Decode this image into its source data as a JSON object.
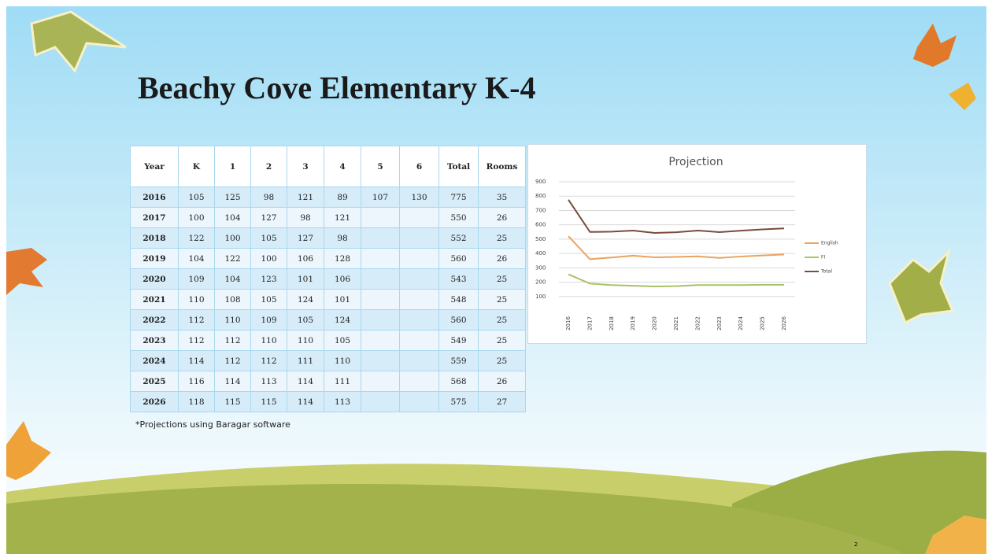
{
  "title": "Beachy Cove Elementary K-4",
  "table": {
    "header": [
      "Year",
      "K",
      "1",
      "2",
      "3",
      "4",
      "5",
      "6",
      "Total",
      "Rooms"
    ],
    "rows": [
      [
        "2016",
        "105",
        "125",
        "98",
        "121",
        "89",
        "107",
        "130",
        "775",
        "35"
      ],
      [
        "2017",
        "100",
        "104",
        "127",
        "98",
        "121",
        null,
        null,
        "550",
        "26"
      ],
      [
        "2018",
        "122",
        "100",
        "105",
        "127",
        "98",
        null,
        null,
        "552",
        "25"
      ],
      [
        "2019",
        "104",
        "122",
        "100",
        "106",
        "128",
        null,
        null,
        "560",
        "26"
      ],
      [
        "2020",
        "109",
        "104",
        "123",
        "101",
        "106",
        null,
        null,
        "543",
        "25"
      ],
      [
        "2021",
        "110",
        "108",
        "105",
        "124",
        "101",
        null,
        null,
        "548",
        "25"
      ],
      [
        "2022",
        "112",
        "110",
        "109",
        "105",
        "124",
        null,
        null,
        "560",
        "25"
      ],
      [
        "2023",
        "112",
        "112",
        "110",
        "110",
        "105",
        null,
        null,
        "549",
        "25"
      ],
      [
        "2024",
        "114",
        "112",
        "112",
        "111",
        "110",
        null,
        null,
        "559",
        "25"
      ],
      [
        "2025",
        "116",
        "114",
        "113",
        "114",
        "111",
        null,
        null,
        "568",
        "26"
      ],
      [
        "2026",
        "118",
        "115",
        "115",
        "114",
        "113",
        null,
        null,
        "575",
        "27"
      ]
    ]
  },
  "footnote": "*Projections using Baragar software",
  "page_number": "2",
  "chart_data": {
    "type": "line",
    "title": "Projection",
    "categories": [
      "2016",
      "2017",
      "2018",
      "2019",
      "2020",
      "2021",
      "2022",
      "2023",
      "2024",
      "2025",
      "2026"
    ],
    "series": [
      {
        "name": "English",
        "color": "#eba25f",
        "values": [
          520,
          360,
          372,
          385,
          373,
          376,
          380,
          369,
          379,
          386,
          393
        ]
      },
      {
        "name": "FI",
        "color": "#a9c266",
        "values": [
          255,
          190,
          180,
          175,
          170,
          172,
          180,
          180,
          180,
          182,
          182
        ]
      },
      {
        "name": "Total",
        "color": "#7b4b3b",
        "values": [
          775,
          550,
          552,
          560,
          543,
          548,
          560,
          549,
          559,
          568,
          575
        ]
      }
    ],
    "ylim": [
      0,
      900
    ],
    "yticks": [
      100,
      200,
      300,
      400,
      500,
      600,
      700,
      800,
      900
    ],
    "grid": true,
    "legend": "right"
  }
}
